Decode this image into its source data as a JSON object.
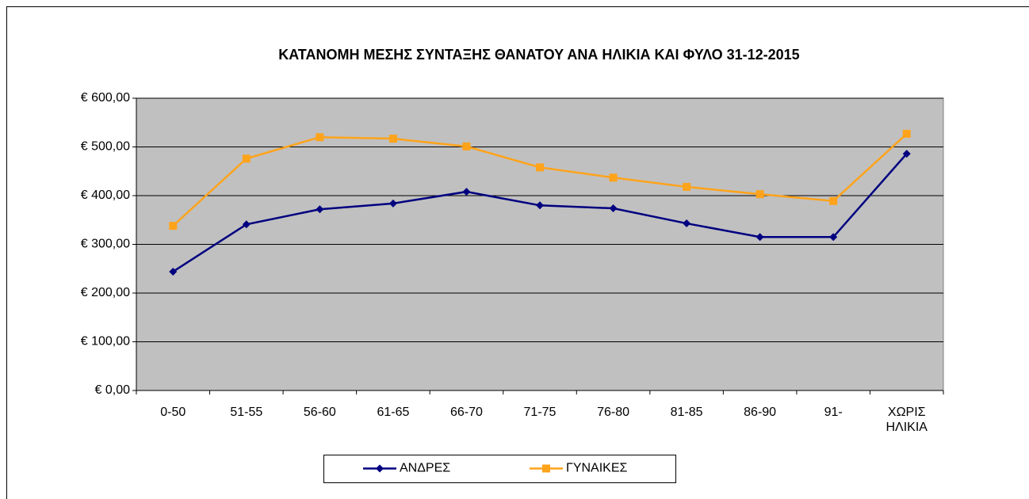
{
  "chart_data": {
    "type": "line",
    "title": "ΚΑΤΑΝΟΜΗ ΜΕΣΗΣ ΣΥΝΤΑΞΗΣ ΘΑΝΑΤΟΥ ΑΝΑ ΗΛΙΚΙΑ ΚΑΙ ΦΥΛΟ 31-12-2015",
    "categories": [
      "0-50",
      "51-55",
      "56-60",
      "61-65",
      "66-70",
      "71-75",
      "76-80",
      "81-85",
      "86-90",
      "91-",
      "ΧΩΡΙΣ ΗΛΙΚΙΑ"
    ],
    "series": [
      {
        "name": "ΑΝΔΡΕΣ",
        "color": "#000080",
        "marker": "diamond",
        "values": [
          244,
          341,
          372,
          384,
          408,
          380,
          374,
          343,
          315,
          315,
          486
        ]
      },
      {
        "name": "ΓΥΝΑΙΚΕΣ",
        "color": "#ffa31a",
        "marker": "square",
        "values": [
          338,
          476,
          520,
          517,
          501,
          458,
          437,
          418,
          403,
          389,
          527
        ]
      }
    ],
    "ylim": [
      0,
      600
    ],
    "yticks": [
      {
        "value": 0,
        "label": "€ 0,00"
      },
      {
        "value": 100,
        "label": "€ 100,00"
      },
      {
        "value": 200,
        "label": "€ 200,00"
      },
      {
        "value": 300,
        "label": "€ 300,00"
      },
      {
        "value": 400,
        "label": "€ 400,00"
      },
      {
        "value": 500,
        "label": "€ 500,00"
      },
      {
        "value": 600,
        "label": "€ 600,00"
      }
    ],
    "grid": true,
    "legend": "bottom"
  }
}
